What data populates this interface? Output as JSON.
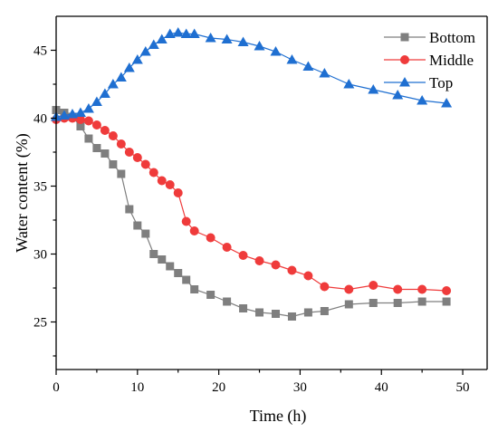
{
  "chart_data": {
    "type": "line",
    "title": "",
    "xlabel": "Time (h)",
    "ylabel": "Water content (%)",
    "xlim": [
      0,
      53
    ],
    "ylim": [
      21.5,
      47.5
    ],
    "xticks": [
      0,
      10,
      20,
      30,
      40,
      50
    ],
    "yticks": [
      25,
      30,
      35,
      40,
      45
    ],
    "grid": false,
    "legend": "top-right",
    "series": [
      {
        "name": "Bottom",
        "color": "#7f7f7f",
        "marker": "square",
        "x": [
          0,
          1,
          2,
          3,
          4,
          5,
          6,
          7,
          8,
          9,
          10,
          11,
          12,
          13,
          14,
          15,
          16,
          17,
          19,
          21,
          23,
          25,
          27,
          29,
          31,
          33,
          36,
          39,
          42,
          45,
          48
        ],
        "y": [
          40.6,
          40.4,
          40.1,
          39.4,
          38.5,
          37.8,
          37.4,
          36.6,
          35.9,
          33.3,
          32.1,
          31.5,
          30.0,
          29.6,
          29.1,
          28.6,
          28.1,
          27.4,
          27.0,
          26.5,
          26.0,
          25.7,
          25.6,
          25.4,
          25.7,
          25.8,
          26.3,
          26.4,
          26.4,
          26.5,
          26.5
        ]
      },
      {
        "name": "Middle",
        "color": "#ef3b3b",
        "marker": "circle",
        "x": [
          0,
          1,
          2,
          3,
          4,
          5,
          6,
          7,
          8,
          9,
          10,
          11,
          12,
          13,
          14,
          15,
          16,
          17,
          19,
          21,
          23,
          25,
          27,
          29,
          31,
          33,
          36,
          39,
          42,
          45,
          48
        ],
        "y": [
          39.9,
          40.0,
          40.0,
          39.9,
          39.8,
          39.5,
          39.1,
          38.7,
          38.1,
          37.5,
          37.1,
          36.6,
          36.0,
          35.4,
          35.1,
          34.5,
          32.4,
          31.7,
          31.2,
          30.5,
          29.9,
          29.5,
          29.2,
          28.8,
          28.4,
          27.6,
          27.4,
          27.7,
          27.4,
          27.4,
          27.3
        ]
      },
      {
        "name": "Top",
        "color": "#1f6fd1",
        "marker": "triangle",
        "x": [
          0,
          1,
          2,
          3,
          4,
          5,
          6,
          7,
          8,
          9,
          10,
          11,
          12,
          13,
          14,
          15,
          16,
          17,
          19,
          21,
          23,
          25,
          27,
          29,
          31,
          33,
          36,
          39,
          42,
          45,
          48
        ],
        "y": [
          40.1,
          40.2,
          40.3,
          40.4,
          40.7,
          41.2,
          41.8,
          42.5,
          43.0,
          43.7,
          44.3,
          44.9,
          45.4,
          45.8,
          46.2,
          46.3,
          46.2,
          46.2,
          45.9,
          45.8,
          45.6,
          45.3,
          44.9,
          44.3,
          43.8,
          43.3,
          42.5,
          42.1,
          41.7,
          41.3,
          41.1
        ]
      }
    ]
  }
}
